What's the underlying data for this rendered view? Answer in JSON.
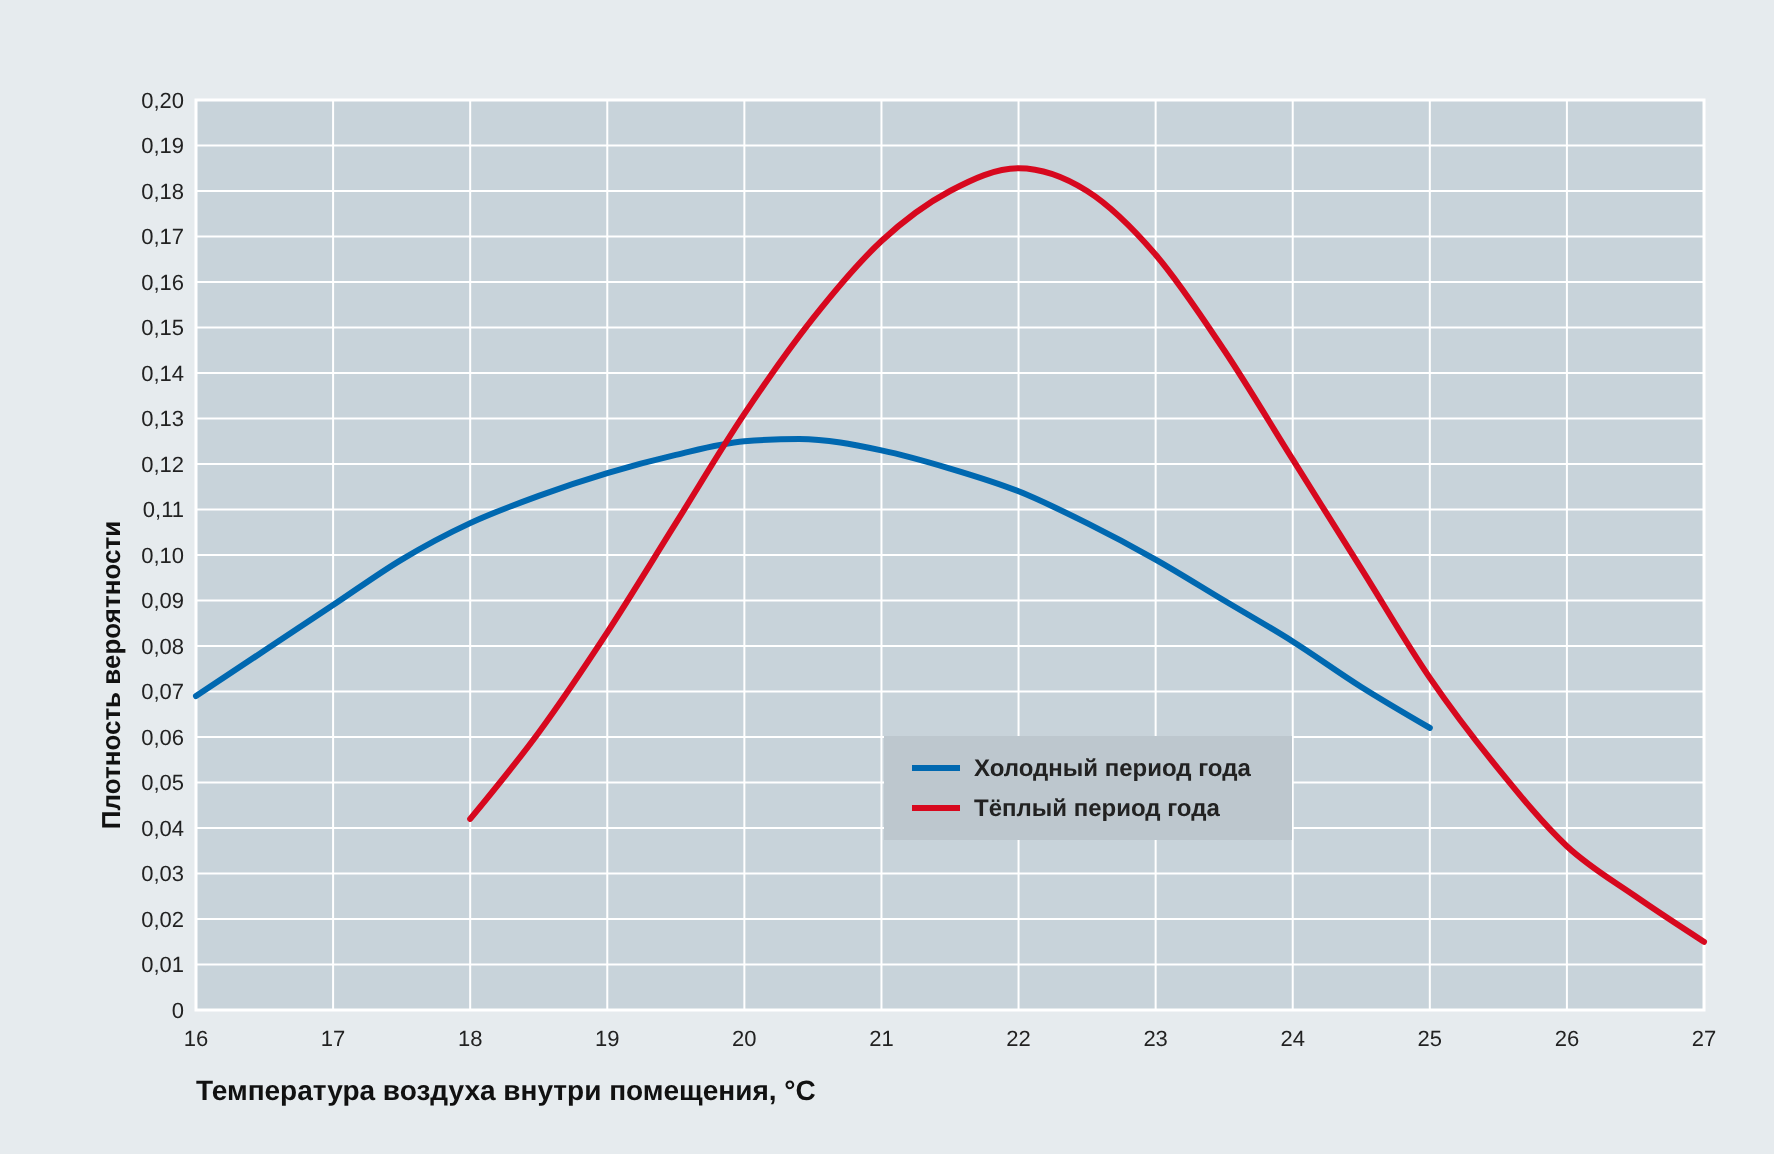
{
  "chart_data": {
    "type": "line",
    "xlabel": "Температура воздуха внутри помещения, °C",
    "ylabel": "Плотность вероятности",
    "xlim": [
      16,
      27
    ],
    "xticks": [
      16,
      17,
      18,
      19,
      20,
      21,
      22,
      23,
      24,
      25,
      26,
      27
    ],
    "ylim": [
      0,
      0.2
    ],
    "yticks": [
      0,
      {
        "value": 0.01,
        "label": "0,01"
      },
      {
        "value": 0.02,
        "label": "0,02"
      },
      {
        "value": 0.03,
        "label": "0,03"
      },
      {
        "value": 0.04,
        "label": "0,04"
      },
      {
        "value": 0.05,
        "label": "0,05"
      },
      {
        "value": 0.06,
        "label": "0,06"
      },
      {
        "value": 0.07,
        "label": "0,07"
      },
      {
        "value": 0.08,
        "label": "0,08"
      },
      {
        "value": 0.09,
        "label": "0,09"
      },
      {
        "value": 0.1,
        "label": "0,10"
      },
      {
        "value": 0.11,
        "label": "0,11"
      },
      {
        "value": 0.12,
        "label": "0,12"
      },
      {
        "value": 0.13,
        "label": "0,13"
      },
      {
        "value": 0.14,
        "label": "0,14"
      },
      {
        "value": 0.15,
        "label": "0,15"
      },
      {
        "value": 0.16,
        "label": "0,16"
      },
      {
        "value": 0.17,
        "label": "0,17"
      },
      {
        "value": 0.18,
        "label": "0,18"
      },
      {
        "value": 0.19,
        "label": "0,19"
      },
      {
        "value": 0.2,
        "label": "0,20"
      }
    ],
    "grid": true,
    "legend": "bottom",
    "marker": "none",
    "line_style": "solid",
    "series": [
      {
        "name": "Холодный период года",
        "color": "#0068b0",
        "x": [
          16,
          16.5,
          17,
          17.5,
          18,
          18.5,
          19,
          19.5,
          20,
          20.4,
          21,
          21.5,
          22,
          22.5,
          23,
          23.5,
          24,
          24.5,
          25
        ],
        "values": [
          0.069,
          0.079,
          0.089,
          0.099,
          0.107,
          0.113,
          0.118,
          0.122,
          0.125,
          0.1255,
          0.123,
          0.119,
          0.114,
          0.107,
          0.099,
          0.09,
          0.081,
          0.071,
          0.062
        ]
      },
      {
        "name": "Тёплый период года",
        "color": "#d7081e",
        "x": [
          18,
          18.5,
          19,
          19.5,
          20,
          20.5,
          21,
          21.5,
          22,
          22.5,
          23,
          23.5,
          24,
          24.5,
          25,
          25.5,
          26,
          26.5,
          27
        ],
        "values": [
          0.042,
          0.061,
          0.083,
          0.107,
          0.131,
          0.152,
          0.169,
          0.18,
          0.185,
          0.18,
          0.166,
          0.145,
          0.121,
          0.097,
          0.073,
          0.053,
          0.036,
          0.025,
          0.015
        ]
      }
    ]
  }
}
